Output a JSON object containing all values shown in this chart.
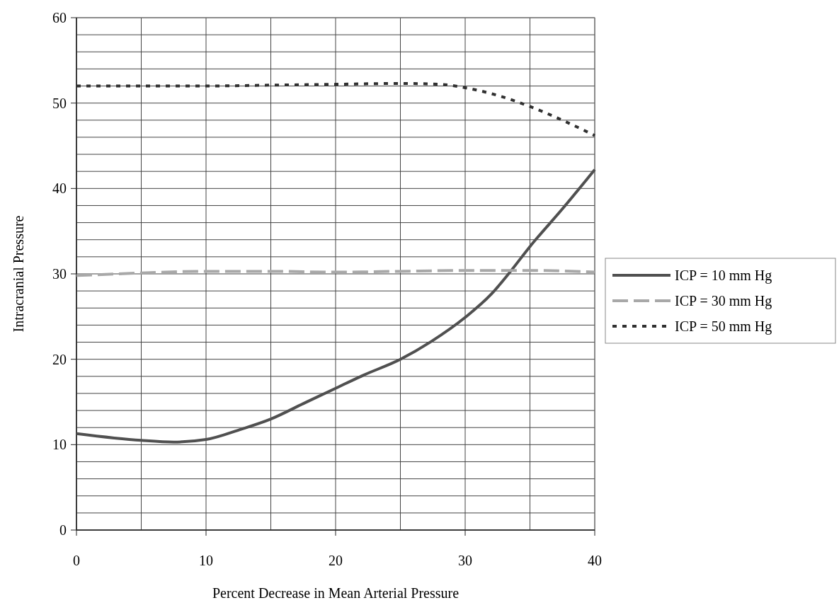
{
  "chart_data": {
    "type": "line",
    "xlabel": "Percent Decrease in Mean Arterial Pressure",
    "ylabel": "Intracranial Pressure",
    "xlim": [
      0,
      40
    ],
    "xticks": [
      0,
      {
        "value": 5,
        "label": null
      },
      10,
      {
        "value": 15,
        "label": null
      },
      20,
      {
        "value": 25,
        "label": null
      },
      30,
      {
        "value": 35,
        "label": null
      },
      40
    ],
    "ylim": [
      0,
      60
    ],
    "yticks": [
      0,
      {
        "value": 2,
        "label": null
      },
      {
        "value": 4,
        "label": null
      },
      {
        "value": 6,
        "label": null
      },
      {
        "value": 8,
        "label": null
      },
      10,
      {
        "value": 12,
        "label": null
      },
      {
        "value": 14,
        "label": null
      },
      {
        "value": 16,
        "label": null
      },
      {
        "value": 18,
        "label": null
      },
      20,
      {
        "value": 22,
        "label": null
      },
      {
        "value": 24,
        "label": null
      },
      {
        "value": 26,
        "label": null
      },
      {
        "value": 28,
        "label": null
      },
      30,
      {
        "value": 32,
        "label": null
      },
      {
        "value": 34,
        "label": null
      },
      {
        "value": 36,
        "label": null
      },
      {
        "value": 38,
        "label": null
      },
      40,
      {
        "value": 42,
        "label": null
      },
      {
        "value": 44,
        "label": null
      },
      {
        "value": 46,
        "label": null
      },
      {
        "value": 48,
        "label": null
      },
      50,
      {
        "value": 52,
        "label": null
      },
      {
        "value": 54,
        "label": null
      },
      {
        "value": 56,
        "label": null
      },
      {
        "value": 58,
        "label": null
      },
      60
    ],
    "grid": true,
    "legend": "right",
    "series": [
      {
        "name": "ICP = 10 mm Hg",
        "color": "#505050",
        "line_style": "solid",
        "x": [
          0,
          5,
          7.5,
          10,
          12.7,
          15,
          17.5,
          20,
          22.1,
          25,
          27.4,
          30,
          32,
          33.4,
          35,
          37.5,
          40
        ],
        "values": [
          11.3,
          10.5,
          10.3,
          10.6,
          11.8,
          13.0,
          14.8,
          16.6,
          18.1,
          20.0,
          22.1,
          24.9,
          27.6,
          30.1,
          33.2,
          37.6,
          42.2
        ]
      },
      {
        "name": "ICP = 30 mm Hg",
        "color": "#a8a8a8",
        "line_style": "dashed",
        "x": [
          0,
          5,
          10,
          15,
          20,
          25,
          30,
          35,
          40
        ],
        "values": [
          29.8,
          30.1,
          30.3,
          30.3,
          30.2,
          30.3,
          30.4,
          30.4,
          30.2
        ]
      },
      {
        "name": "ICP = 50 mm Hg",
        "color": "#303030",
        "line_style": "dotted",
        "x": [
          0,
          5,
          10,
          15,
          20,
          25,
          28,
          30,
          32.5,
          35,
          37.5,
          40
        ],
        "values": [
          52.0,
          52.0,
          52.0,
          52.1,
          52.2,
          52.3,
          52.2,
          51.8,
          50.9,
          49.6,
          48.0,
          46.2
        ]
      }
    ]
  }
}
